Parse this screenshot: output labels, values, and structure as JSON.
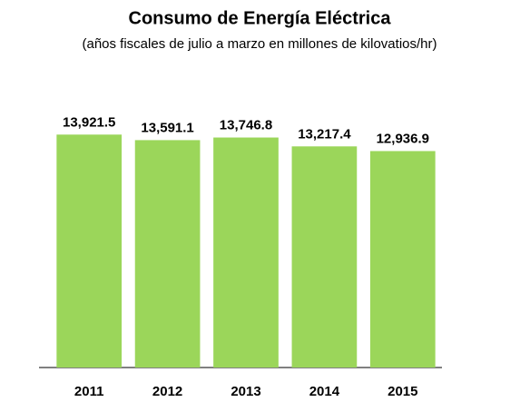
{
  "chart_data": {
    "type": "bar",
    "title": "Consumo de Energía Eléctrica",
    "subtitle": "(años fiscales de julio a marzo en millones de kilovatios/hr)",
    "categories": [
      "2011",
      "2012",
      "2013",
      "2014",
      "2015"
    ],
    "values": [
      13921.5,
      13591.1,
      13746.8,
      13217.4,
      12936.9
    ],
    "value_labels": [
      "13,921.5",
      "13,591.1",
      "13,746.8",
      "13,217.4",
      "12,936.9"
    ],
    "color": "#9bd65a",
    "ylim": [
      0,
      16000
    ]
  }
}
